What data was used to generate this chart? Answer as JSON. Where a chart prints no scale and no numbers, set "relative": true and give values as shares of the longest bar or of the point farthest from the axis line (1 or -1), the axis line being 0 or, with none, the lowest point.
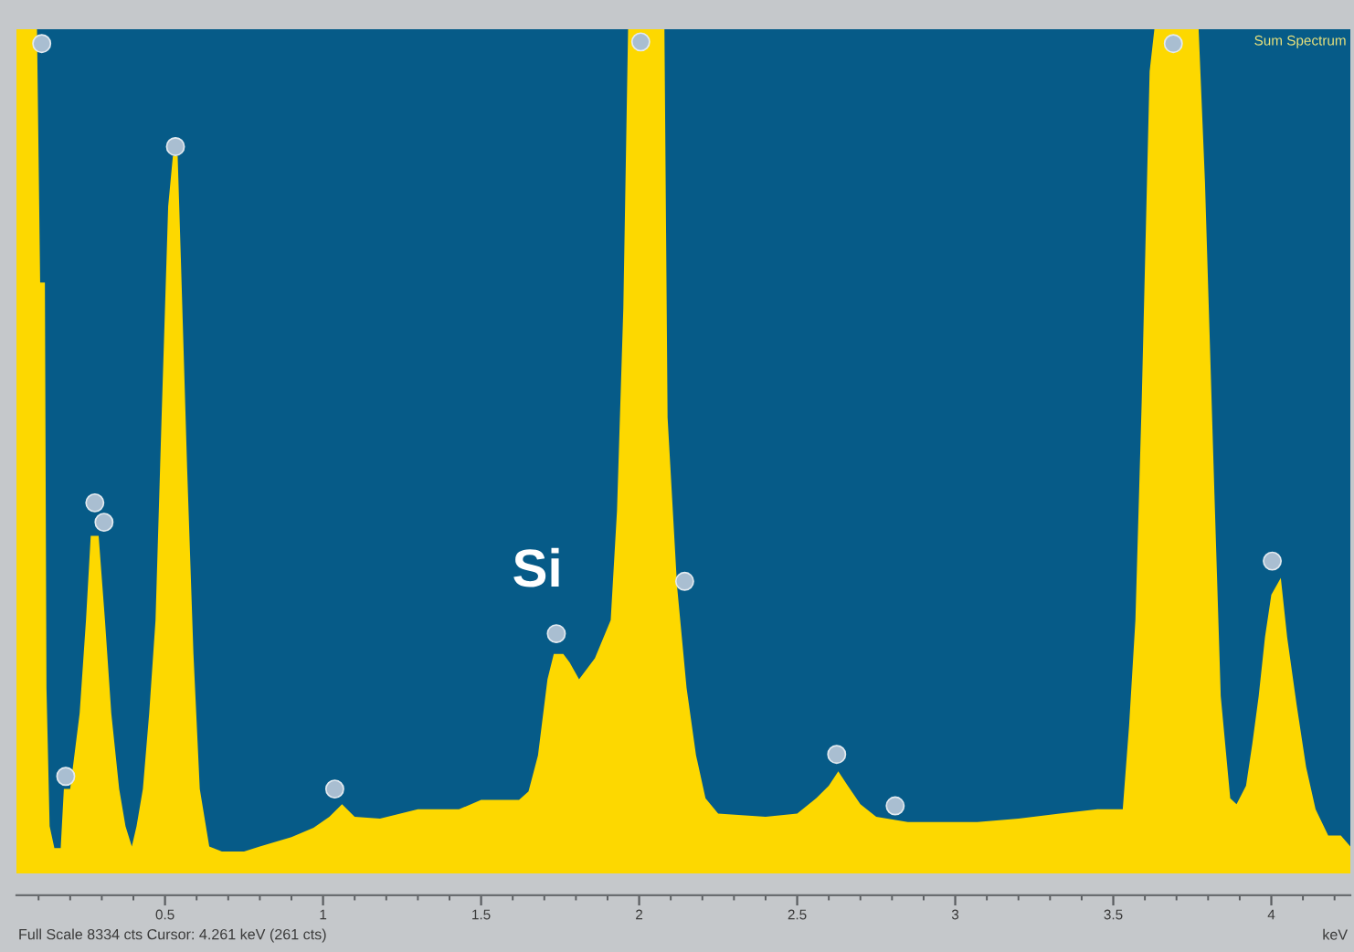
{
  "chart_data": {
    "type": "area",
    "title": "Sum Spectrum",
    "xlabel": "keV",
    "relative": true,
    "xlim": [
      0.03,
      4.25
    ],
    "xticks": [
      {
        "value": 0.1,
        "label": null
      },
      {
        "value": 0.2,
        "label": null
      },
      {
        "value": 0.3,
        "label": null
      },
      {
        "value": 0.4,
        "label": null
      },
      0.5,
      {
        "value": 0.6,
        "label": null
      },
      {
        "value": 0.7,
        "label": null
      },
      {
        "value": 0.8,
        "label": null
      },
      {
        "value": 0.9,
        "label": null
      },
      1,
      {
        "value": 1.1,
        "label": null
      },
      {
        "value": 1.2,
        "label": null
      },
      {
        "value": 1.3,
        "label": null
      },
      {
        "value": 1.4,
        "label": null
      },
      1.5,
      {
        "value": 1.6,
        "label": null
      },
      {
        "value": 1.7,
        "label": null
      },
      {
        "value": 1.8,
        "label": null
      },
      {
        "value": 1.9,
        "label": null
      },
      2,
      {
        "value": 2.1,
        "label": null
      },
      {
        "value": 2.2,
        "label": null
      },
      {
        "value": 2.3,
        "label": null
      },
      {
        "value": 2.4,
        "label": null
      },
      2.5,
      {
        "value": 2.6,
        "label": null
      },
      {
        "value": 2.7,
        "label": null
      },
      {
        "value": 2.8,
        "label": null
      },
      {
        "value": 2.9,
        "label": null
      },
      3,
      {
        "value": 3.1,
        "label": null
      },
      {
        "value": 3.2,
        "label": null
      },
      {
        "value": 3.3,
        "label": null
      },
      {
        "value": 3.4,
        "label": null
      },
      3.5,
      {
        "value": 3.6,
        "label": null
      },
      {
        "value": 3.7,
        "label": null
      },
      {
        "value": 3.8,
        "label": null
      },
      {
        "value": 3.9,
        "label": null
      },
      4,
      {
        "value": 4.1,
        "label": null
      },
      {
        "value": 4.2,
        "label": null
      }
    ],
    "annotations": [
      {
        "text": "Si",
        "x": 1.73,
        "y": 0.26
      },
      "Full Scale 8334 cts Cursor: 4.261 keV (261 cts)"
    ],
    "series": [
      {
        "color": "#fdd800",
        "x": [
          0.03,
          0.095,
          0.105,
          0.12,
          0.125,
          0.135,
          0.15,
          0.17,
          0.18,
          0.2,
          0.23,
          0.25,
          0.265,
          0.29,
          0.31,
          0.33,
          0.355,
          0.375,
          0.395,
          0.41,
          0.43,
          0.45,
          0.47,
          0.49,
          0.51,
          0.525,
          0.54,
          0.55,
          0.57,
          0.59,
          0.61,
          0.64,
          0.68,
          0.75,
          0.8,
          0.9,
          0.97,
          1.02,
          1.06,
          1.1,
          1.18,
          1.3,
          1.43,
          1.5,
          1.62,
          1.65,
          1.68,
          1.71,
          1.73,
          1.76,
          1.78,
          1.81,
          1.86,
          1.91,
          1.93,
          1.95,
          1.965,
          2.08,
          2.09,
          2.12,
          2.15,
          2.18,
          2.21,
          2.25,
          2.4,
          2.5,
          2.56,
          2.6,
          2.63,
          2.66,
          2.7,
          2.75,
          2.85,
          3.07,
          3.2,
          3.33,
          3.45,
          3.53,
          3.55,
          3.57,
          3.59,
          3.615,
          3.63,
          3.77,
          3.79,
          3.82,
          3.84,
          3.87,
          3.89,
          3.92,
          3.94,
          3.96,
          3.98,
          4.0,
          4.03,
          4.05,
          4.08,
          4.11,
          4.14,
          4.18,
          4.22,
          4.25
        ],
        "values": [
          1.0,
          1.0,
          0.7,
          0.7,
          0.22,
          0.056,
          0.03,
          0.03,
          0.1,
          0.1,
          0.19,
          0.3,
          0.4,
          0.4,
          0.3,
          0.19,
          0.1,
          0.056,
          0.032,
          0.056,
          0.1,
          0.19,
          0.3,
          0.55,
          0.79,
          0.85,
          0.85,
          0.73,
          0.48,
          0.26,
          0.1,
          0.032,
          0.026,
          0.026,
          0.032,
          0.043,
          0.054,
          0.067,
          0.082,
          0.067,
          0.065,
          0.076,
          0.076,
          0.087,
          0.087,
          0.097,
          0.14,
          0.23,
          0.26,
          0.26,
          0.25,
          0.23,
          0.255,
          0.3,
          0.43,
          0.67,
          1.0,
          1.0,
          0.54,
          0.34,
          0.22,
          0.14,
          0.089,
          0.071,
          0.067,
          0.071,
          0.089,
          0.104,
          0.121,
          0.104,
          0.082,
          0.067,
          0.061,
          0.061,
          0.065,
          0.071,
          0.076,
          0.076,
          0.175,
          0.3,
          0.56,
          0.95,
          1.0,
          1.0,
          0.82,
          0.45,
          0.21,
          0.089,
          0.082,
          0.104,
          0.154,
          0.21,
          0.28,
          0.33,
          0.35,
          0.28,
          0.2,
          0.126,
          0.076,
          0.045,
          0.045,
          0.032
        ]
      },
      {
        "type": "scatter",
        "color": "#a9bed1",
        "marker": "circle",
        "x": [
          0.11,
          0.186,
          0.278,
          0.307,
          0.533,
          1.037,
          1.738,
          2.005,
          2.144,
          2.625,
          2.81,
          3.69,
          4.003
        ],
        "values": [
          0.983,
          0.115,
          0.439,
          0.416,
          0.861,
          0.1,
          0.284,
          0.985,
          0.346,
          0.141,
          0.08,
          0.983,
          0.37
        ]
      }
    ]
  }
}
